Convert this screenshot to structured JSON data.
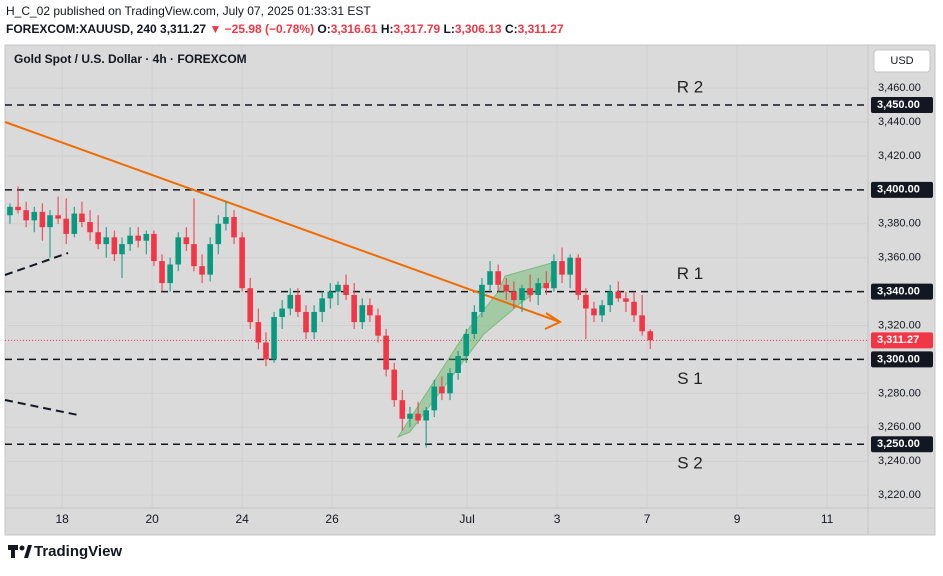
{
  "header": {
    "line1": "H_C_02 published on TradingView.com, July 07, 2025 01:33:31 EST",
    "symbol": "FOREXCOM:XAUUSD, 240",
    "last": "3,311.27",
    "change": "▼ −25.98 (−0.78%)",
    "ohlc": [
      {
        "label": "O:",
        "value": "3,316.61"
      },
      {
        "label": "H:",
        "value": "3,317.79"
      },
      {
        "label": "L:",
        "value": "3,306.13"
      },
      {
        "label": "C:",
        "value": "3,311.27"
      }
    ]
  },
  "chart_data": {
    "type": "candlestick",
    "title": "Gold Spot / U.S. Dollar · 4h · FOREXCOM",
    "currency": "USD",
    "up_color": "#089981",
    "down_color": "#f23645",
    "grid": true,
    "x": [
      -1.16,
      -0.98,
      -0.8,
      -0.62,
      -0.44,
      -0.27,
      -0.09,
      0.09,
      0.27,
      0.44,
      0.62,
      0.8,
      0.98,
      1.16,
      1.33,
      1.51,
      1.69,
      1.87,
      2.04,
      2.22,
      2.4,
      2.58,
      2.76,
      2.93,
      3.11,
      3.29,
      3.47,
      3.64,
      3.82,
      4.0,
      4.18,
      4.36,
      4.53,
      4.71,
      4.89,
      5.07,
      5.24,
      5.42,
      5.6,
      5.78,
      5.96,
      6.13,
      6.31,
      6.49,
      6.67,
      6.84,
      7.02,
      7.2,
      7.38,
      7.56,
      7.73,
      7.91,
      8.09,
      8.27,
      8.44,
      8.62,
      8.8,
      8.98,
      9.16,
      9.33,
      9.51,
      9.69,
      9.87,
      10.04,
      10.22,
      10.4,
      10.58,
      10.76,
      10.93,
      11.11,
      11.29,
      11.47,
      11.64,
      11.82,
      12.0,
      12.18,
      12.36,
      12.53,
      12.71,
      12.89,
      13.07
    ],
    "open": [
      3385,
      3390,
      3388,
      3382,
      3387,
      3378,
      3385,
      3383,
      3374,
      3386,
      3381,
      3375,
      3368,
      3372,
      3362,
      3368,
      3373,
      3370,
      3374,
      3358,
      3345,
      3356,
      3372,
      3368,
      3355,
      3350,
      3368,
      3380,
      3384,
      3372,
      3342,
      3322,
      3310,
      3300,
      3325,
      3330,
      3338,
      3328,
      3316,
      3328,
      3336,
      3340,
      3344,
      3338,
      3322,
      3332,
      3326,
      3314,
      3294,
      3276,
      3265,
      3268,
      3264,
      3270,
      3284,
      3280,
      3292,
      3302,
      3315,
      3328,
      3344,
      3352,
      3344,
      3340,
      3335,
      3342,
      3338,
      3345,
      3342,
      3358,
      3350,
      3360,
      3338,
      3330,
      3326,
      3332,
      3340,
      3336,
      3334,
      3326,
      3316.61
    ],
    "high": [
      3392,
      3402,
      3393,
      3390,
      3392,
      3388,
      3396,
      3395,
      3390,
      3393,
      3388,
      3385,
      3378,
      3376,
      3372,
      3378,
      3378,
      3376,
      3376,
      3362,
      3360,
      3375,
      3378,
      3395,
      3362,
      3372,
      3385,
      3393,
      3388,
      3375,
      3348,
      3330,
      3316,
      3328,
      3335,
      3342,
      3342,
      3332,
      3332,
      3340,
      3345,
      3346,
      3350,
      3345,
      3336,
      3336,
      3330,
      3318,
      3298,
      3282,
      3272,
      3275,
      3272,
      3288,
      3290,
      3295,
      3305,
      3318,
      3332,
      3348,
      3358,
      3356,
      3348,
      3346,
      3344,
      3350,
      3348,
      3352,
      3362,
      3366,
      3362,
      3362,
      3342,
      3334,
      3335,
      3344,
      3346,
      3340,
      3340,
      3338,
      3317.79
    ],
    "low": [
      3380,
      3386,
      3378,
      3375,
      3370,
      3360,
      3380,
      3368,
      3372,
      3378,
      3370,
      3365,
      3360,
      3358,
      3348,
      3364,
      3366,
      3362,
      3355,
      3340,
      3340,
      3352,
      3364,
      3352,
      3345,
      3346,
      3362,
      3376,
      3368,
      3340,
      3318,
      3306,
      3296,
      3298,
      3318,
      3326,
      3325,
      3312,
      3312,
      3322,
      3330,
      3332,
      3335,
      3318,
      3318,
      3322,
      3310,
      3290,
      3272,
      3258,
      3260,
      3262,
      3248,
      3266,
      3276,
      3276,
      3288,
      3298,
      3312,
      3325,
      3340,
      3340,
      3335,
      3330,
      3328,
      3334,
      3332,
      3338,
      3340,
      3345,
      3342,
      3335,
      3312,
      3322,
      3322,
      3328,
      3334,
      3328,
      3322,
      3314,
      3306.13
    ],
    "close": [
      3390,
      3388,
      3382,
      3387,
      3378,
      3385,
      3383,
      3374,
      3386,
      3381,
      3375,
      3368,
      3372,
      3362,
      3368,
      3373,
      3370,
      3374,
      3358,
      3345,
      3356,
      3372,
      3368,
      3355,
      3350,
      3368,
      3380,
      3384,
      3372,
      3342,
      3322,
      3310,
      3300,
      3325,
      3330,
      3338,
      3328,
      3316,
      3328,
      3336,
      3340,
      3344,
      3338,
      3322,
      3332,
      3326,
      3314,
      3294,
      3276,
      3265,
      3268,
      3264,
      3270,
      3284,
      3280,
      3292,
      3302,
      3315,
      3328,
      3344,
      3352,
      3344,
      3340,
      3335,
      3342,
      3338,
      3345,
      3342,
      3358,
      3350,
      3360,
      3338,
      3330,
      3326,
      3332,
      3340,
      3336,
      3334,
      3326,
      3316.61,
      3311.27
    ],
    "xlim": [
      -1.27,
      17.91
    ],
    "ylim": [
      3212.4,
      3485.4
    ],
    "xticks": [
      {
        "value": 0,
        "label": "18"
      },
      {
        "value": 2,
        "label": "20"
      },
      {
        "value": 4,
        "label": "24"
      },
      {
        "value": 6,
        "label": "26"
      },
      {
        "value": 9,
        "label": "Jul"
      },
      {
        "value": 11,
        "label": "3"
      },
      {
        "value": 13,
        "label": "7"
      },
      {
        "value": 15,
        "label": "9"
      },
      {
        "value": 17,
        "label": "11"
      }
    ],
    "yticks": [
      {
        "value": 3460,
        "label": "3,460.00"
      },
      {
        "value": 3440,
        "label": "3,440.00"
      },
      {
        "value": 3420,
        "label": "3,420.00"
      },
      {
        "value": 3380,
        "label": "3,380.00"
      },
      {
        "value": 3360,
        "label": "3,360.00"
      },
      {
        "value": 3320,
        "label": "3,320.00"
      },
      {
        "value": 3280,
        "label": "3,280.00"
      },
      {
        "value": 3260,
        "label": "3,260.00"
      },
      {
        "value": 3240,
        "label": "3,240.00"
      },
      {
        "value": 3220,
        "label": "3,220.00"
      }
    ],
    "levels": [
      {
        "value": 3450,
        "label": "3,450.00",
        "name": "R 2",
        "name_position": "above"
      },
      {
        "value": 3400,
        "label": "3,400.00"
      },
      {
        "value": 3340,
        "label": "3,340.00",
        "name": "R 1",
        "name_position": "above"
      },
      {
        "value": 3300,
        "label": "3,300.00",
        "name": "S 1",
        "name_position": "below"
      },
      {
        "value": 3250,
        "label": "3,250.00",
        "name": "S 2",
        "name_position": "below"
      }
    ],
    "last_price": {
      "value": 3311.27,
      "label": "3,311.27"
    }
  },
  "footer": {
    "brand": "TradingView"
  }
}
